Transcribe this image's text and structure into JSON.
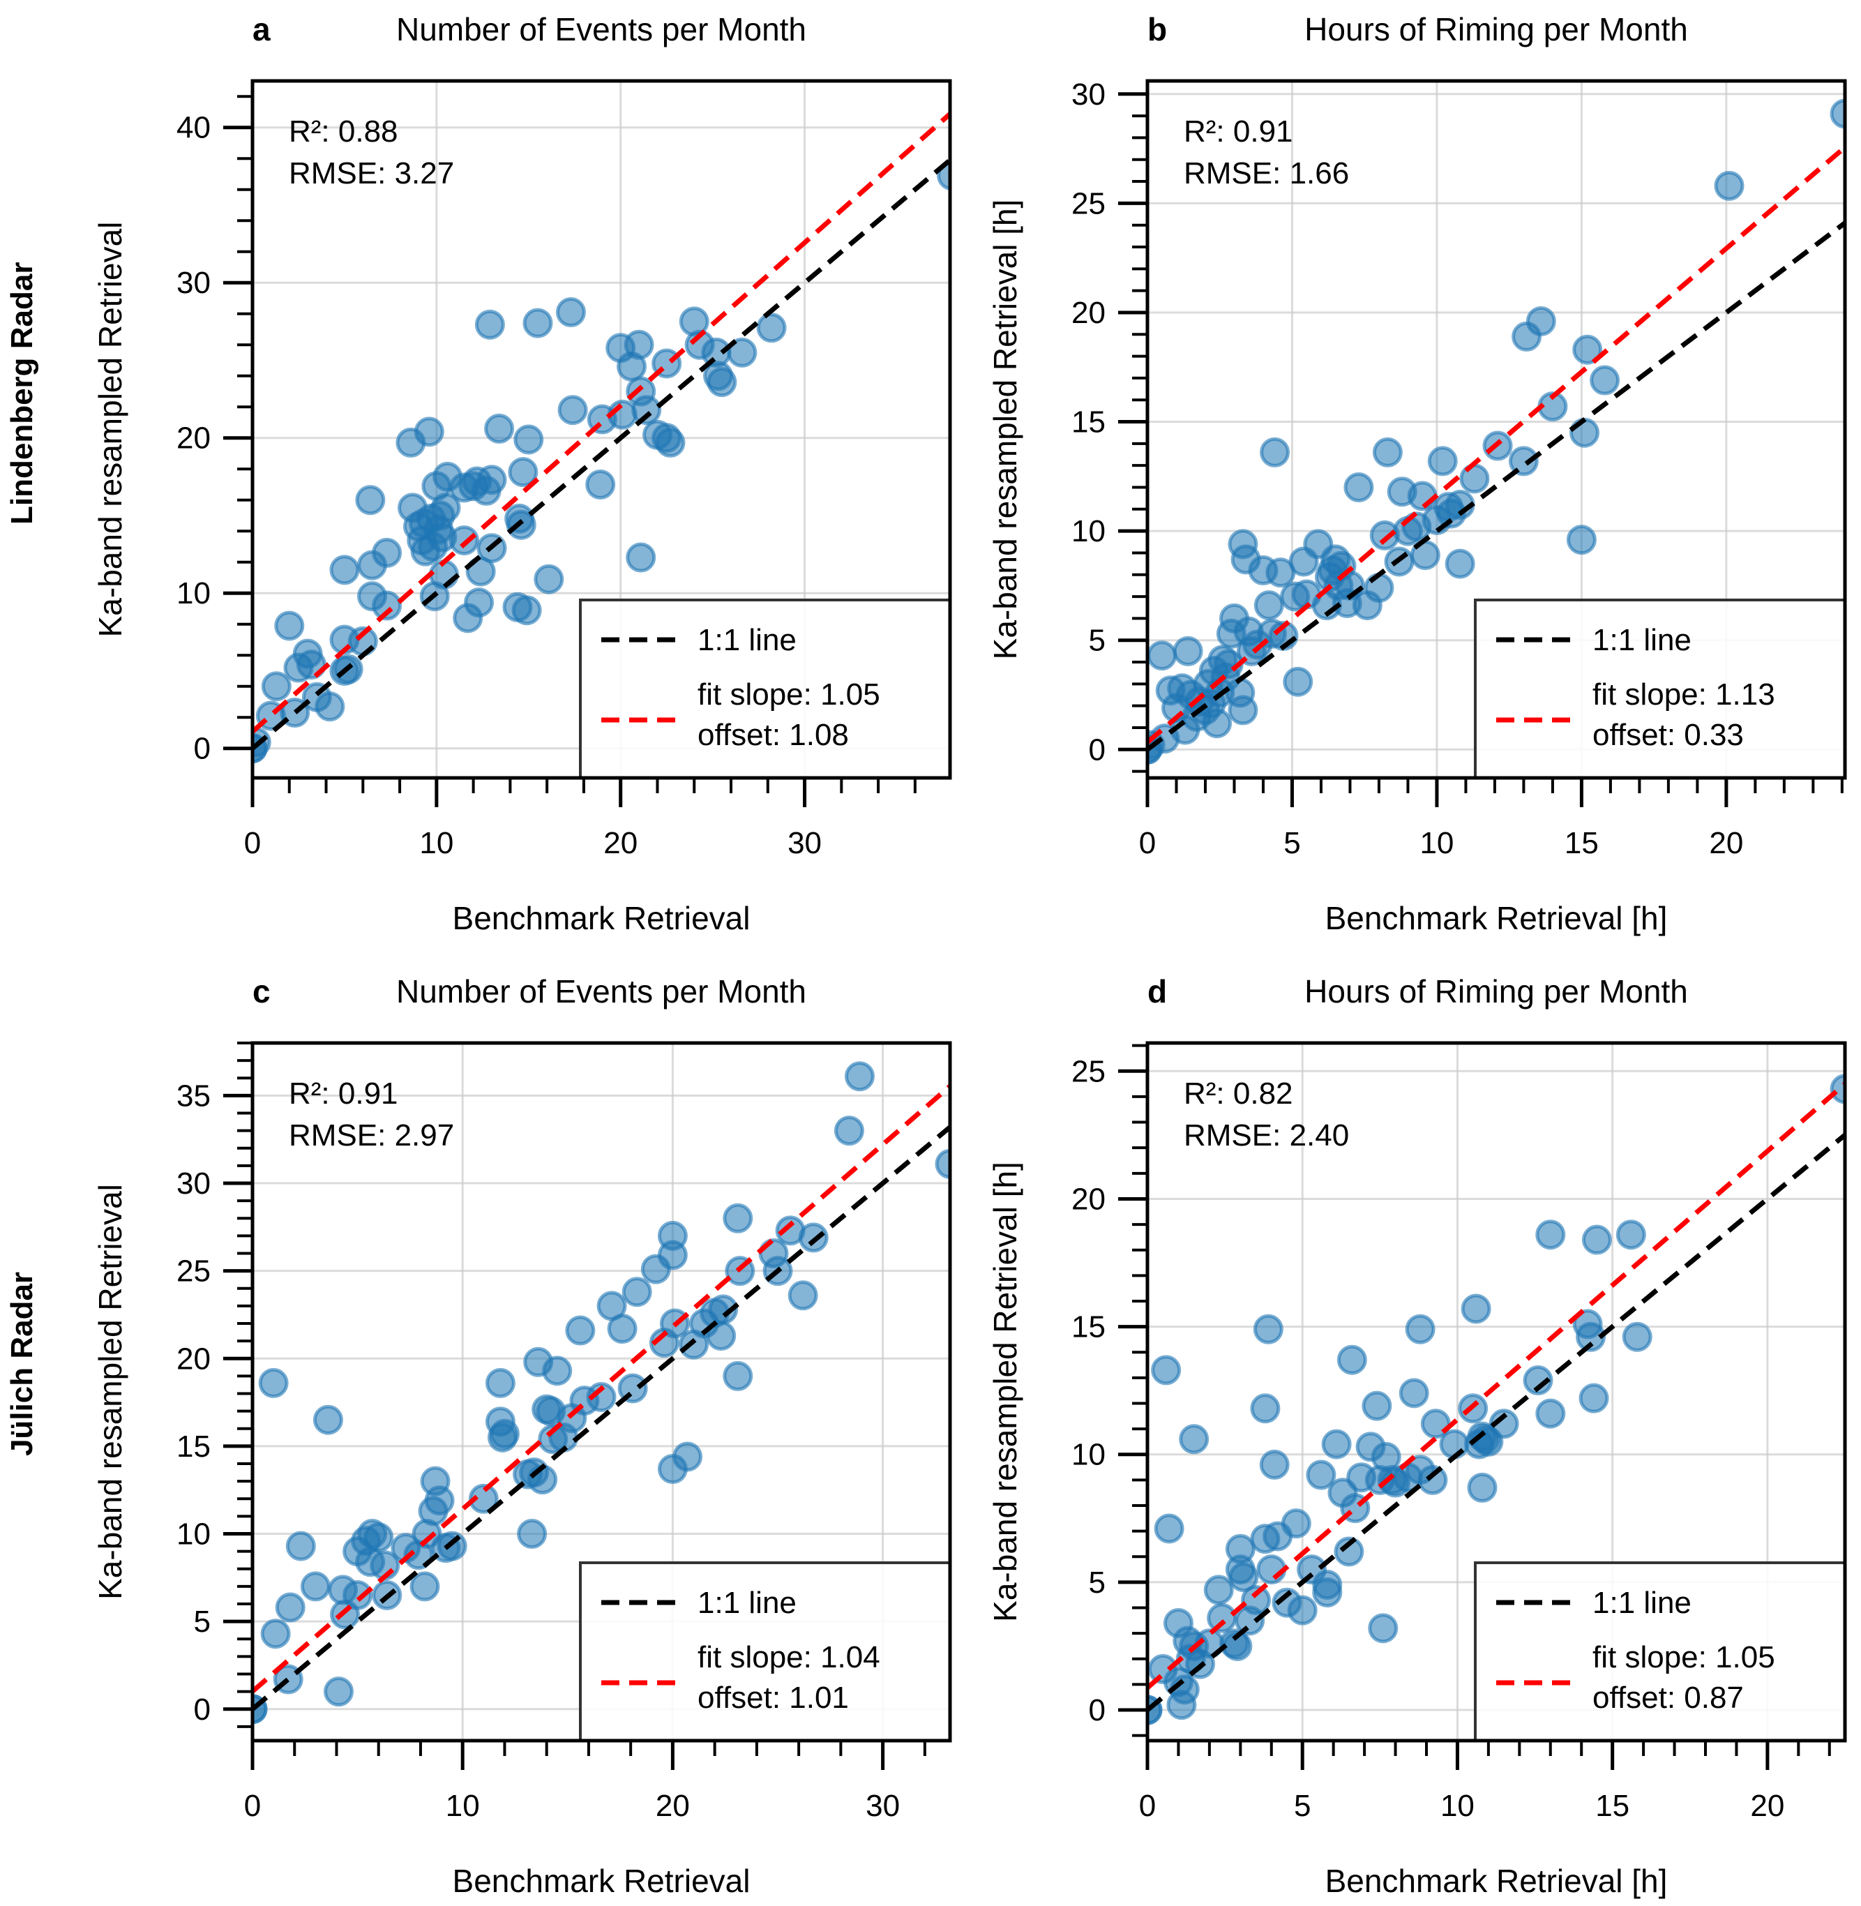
{
  "figure": {
    "row_labels": [
      "Lindenberg Radar",
      "Jülich Radar"
    ],
    "legend_labels": {
      "one_to_one": "1:1 line"
    },
    "colors": {
      "points": "#1f77b4",
      "one_to_one": "#000000",
      "fit": "#ff0000",
      "grid": "#cccccc"
    }
  },
  "chart_data": [
    {
      "panel": "a",
      "type": "scatter",
      "title": "Number of Events per Month",
      "xlabel": "Benchmark Retrieval",
      "ylabel": "Ka-band resampled Retrieval",
      "xlim": [
        0,
        37.9
      ],
      "ylim": [
        -1.9,
        43
      ],
      "xticks": [
        0,
        10,
        20,
        30
      ],
      "yticks": [
        0,
        10,
        20,
        30,
        40
      ],
      "x_minor_step": 2,
      "y_minor_step": 2,
      "grid": true,
      "stats": {
        "r2_label": "R²: 0.88",
        "rmse_label": "RMSE: 3.27"
      },
      "fit": {
        "slope": 1.05,
        "offset": 1.08,
        "label_line1": "fit slope: 1.05",
        "label_line2": "offset: 1.08"
      },
      "legend_position": "lower-right",
      "points": [
        [
          0,
          0
        ],
        [
          0,
          0
        ],
        [
          0.2,
          0.4
        ],
        [
          1.0,
          2.1
        ],
        [
          1.3,
          4.0
        ],
        [
          2.0,
          7.9
        ],
        [
          2.3,
          2.3
        ],
        [
          2.5,
          5.2
        ],
        [
          3.0,
          6.1
        ],
        [
          3.2,
          5.4
        ],
        [
          3.5,
          3.3
        ],
        [
          4.2,
          2.7
        ],
        [
          5.0,
          11.5
        ],
        [
          5.0,
          7.0
        ],
        [
          5.0,
          5.0
        ],
        [
          5.2,
          5.1
        ],
        [
          6.0,
          6.9
        ],
        [
          6.4,
          16.0
        ],
        [
          6.5,
          11.8
        ],
        [
          6.5,
          9.8
        ],
        [
          7.3,
          12.6
        ],
        [
          7.3,
          9.2
        ],
        [
          8.7,
          15.5
        ],
        [
          8.6,
          19.7
        ],
        [
          9.0,
          14.3
        ],
        [
          9.2,
          13.4
        ],
        [
          9.3,
          14.5
        ],
        [
          9.4,
          12.7
        ],
        [
          9.6,
          20.4
        ],
        [
          9.7,
          14.8
        ],
        [
          9.8,
          13.0
        ],
        [
          9.9,
          9.8
        ],
        [
          10.0,
          16.9
        ],
        [
          10.1,
          14.1
        ],
        [
          10.2,
          15.0
        ],
        [
          10.3,
          13.6
        ],
        [
          10.5,
          15.5
        ],
        [
          10.6,
          17.5
        ],
        [
          10.4,
          11.2
        ],
        [
          11.5,
          16.8
        ],
        [
          11.5,
          13.4
        ],
        [
          11.7,
          8.4
        ],
        [
          12.0,
          16.9
        ],
        [
          12.2,
          17.2
        ],
        [
          12.3,
          9.4
        ],
        [
          12.4,
          11.4
        ],
        [
          12.7,
          16.6
        ],
        [
          13.0,
          17.3
        ],
        [
          13.0,
          12.9
        ],
        [
          12.9,
          27.3
        ],
        [
          13.4,
          20.6
        ],
        [
          14.4,
          9.1
        ],
        [
          14.5,
          14.8
        ],
        [
          14.6,
          14.4
        ],
        [
          14.7,
          17.8
        ],
        [
          14.9,
          8.9
        ],
        [
          15.0,
          19.9
        ],
        [
          15.5,
          27.4
        ],
        [
          16.1,
          10.9
        ],
        [
          17.3,
          28.1
        ],
        [
          17.4,
          21.8
        ],
        [
          18.9,
          17.0
        ],
        [
          19.0,
          21.2
        ],
        [
          20.0,
          25.8
        ],
        [
          20.1,
          21.5
        ],
        [
          20.6,
          24.6
        ],
        [
          21.0,
          26.0
        ],
        [
          21.1,
          12.3
        ],
        [
          21.1,
          23.0
        ],
        [
          21.4,
          21.8
        ],
        [
          22.0,
          20.2
        ],
        [
          22.5,
          24.8
        ],
        [
          22.7,
          19.7
        ],
        [
          22.5,
          20.0
        ],
        [
          24.0,
          27.5
        ],
        [
          24.3,
          26.0
        ],
        [
          25.2,
          25.5
        ],
        [
          25.3,
          24.0
        ],
        [
          25.5,
          23.6
        ],
        [
          26.6,
          25.5
        ],
        [
          28.2,
          27.1
        ],
        [
          38.0,
          36.9
        ]
      ]
    },
    {
      "panel": "b",
      "type": "scatter",
      "title": "Hours of Riming per Month",
      "xlabel": "Benchmark Retrieval [h]",
      "ylabel": "Ka-band resampled Retrieval [h]",
      "xlim": [
        0,
        24.1
      ],
      "ylim": [
        -1.3,
        30.6
      ],
      "xticks": [
        0,
        5,
        10,
        15,
        20
      ],
      "yticks": [
        0,
        5,
        10,
        15,
        20,
        25,
        30
      ],
      "x_minor_step": 1,
      "y_minor_step": 1,
      "grid": true,
      "stats": {
        "r2_label": "R²: 0.91",
        "rmse_label": "RMSE: 1.66"
      },
      "fit": {
        "slope": 1.13,
        "offset": 0.33,
        "label_line1": "fit slope: 1.13",
        "label_line2": "offset: 0.33"
      },
      "legend_position": "lower-right",
      "points": [
        [
          0,
          0
        ],
        [
          0,
          0
        ],
        [
          0.1,
          0.2
        ],
        [
          0.5,
          4.3
        ],
        [
          0.6,
          0.5
        ],
        [
          0.8,
          2.7
        ],
        [
          1.0,
          1.9
        ],
        [
          1.2,
          2.8
        ],
        [
          1.3,
          0.9
        ],
        [
          1.4,
          4.5
        ],
        [
          1.5,
          2.5
        ],
        [
          1.7,
          1.5
        ],
        [
          1.8,
          2.2
        ],
        [
          2.0,
          1.8
        ],
        [
          2.1,
          3.0
        ],
        [
          2.2,
          2.1
        ],
        [
          2.3,
          3.6
        ],
        [
          2.4,
          1.2
        ],
        [
          2.5,
          2.6
        ],
        [
          2.6,
          4.1
        ],
        [
          2.7,
          3.3
        ],
        [
          2.8,
          3.9
        ],
        [
          2.9,
          5.3
        ],
        [
          3.0,
          6.0
        ],
        [
          3.2,
          2.6
        ],
        [
          3.3,
          1.8
        ],
        [
          3.3,
          9.4
        ],
        [
          3.4,
          8.7
        ],
        [
          3.5,
          5.4
        ],
        [
          3.6,
          4.5
        ],
        [
          3.8,
          4.8
        ],
        [
          4.0,
          8.2
        ],
        [
          4.2,
          6.6
        ],
        [
          4.3,
          5.3
        ],
        [
          4.4,
          13.6
        ],
        [
          4.6,
          8.1
        ],
        [
          4.7,
          5.2
        ],
        [
          5.1,
          7.0
        ],
        [
          5.2,
          3.1
        ],
        [
          5.4,
          8.6
        ],
        [
          5.5,
          7.1
        ],
        [
          5.9,
          9.4
        ],
        [
          6.2,
          6.6
        ],
        [
          6.3,
          7.9
        ],
        [
          6.4,
          8.2
        ],
        [
          6.5,
          8.7
        ],
        [
          6.6,
          7.5
        ],
        [
          6.7,
          8.4
        ],
        [
          6.9,
          6.7
        ],
        [
          7.0,
          7.5
        ],
        [
          7.3,
          12.0
        ],
        [
          7.6,
          6.6
        ],
        [
          8.0,
          7.4
        ],
        [
          8.2,
          9.8
        ],
        [
          8.3,
          13.6
        ],
        [
          8.7,
          8.6
        ],
        [
          8.8,
          11.8
        ],
        [
          9.0,
          10.0
        ],
        [
          9.3,
          10.2
        ],
        [
          9.5,
          11.6
        ],
        [
          9.6,
          8.9
        ],
        [
          10.0,
          10.5
        ],
        [
          10.2,
          13.2
        ],
        [
          10.4,
          11.1
        ],
        [
          10.5,
          10.8
        ],
        [
          10.8,
          8.5
        ],
        [
          10.8,
          11.2
        ],
        [
          11.3,
          12.4
        ],
        [
          12.1,
          13.9
        ],
        [
          13.0,
          13.2
        ],
        [
          13.1,
          18.9
        ],
        [
          13.6,
          19.6
        ],
        [
          14.0,
          15.7
        ],
        [
          15.0,
          9.6
        ],
        [
          15.1,
          14.5
        ],
        [
          15.2,
          18.3
        ],
        [
          15.8,
          16.9
        ],
        [
          20.1,
          25.8
        ],
        [
          24.1,
          29.1
        ]
      ]
    },
    {
      "panel": "c",
      "type": "scatter",
      "title": "Number of Events per Month",
      "xlabel": "Benchmark Retrieval",
      "ylabel": "Ka-band resampled Retrieval",
      "xlim": [
        0,
        33.2
      ],
      "ylim": [
        -1.8,
        38
      ],
      "xticks": [
        0,
        10,
        20,
        30
      ],
      "yticks": [
        0,
        5,
        10,
        15,
        20,
        25,
        30,
        35
      ],
      "x_minor_step": 2,
      "y_minor_step": 1,
      "grid": true,
      "stats": {
        "r2_label": "R²: 0.91",
        "rmse_label": "RMSE: 2.97"
      },
      "fit": {
        "slope": 1.04,
        "offset": 1.01,
        "label_line1": "fit slope: 1.04",
        "label_line2": "offset: 1.01"
      },
      "legend_position": "lower-right",
      "points": [
        [
          0,
          0
        ],
        [
          0,
          0
        ],
        [
          1.0,
          18.6
        ],
        [
          1.1,
          4.3
        ],
        [
          1.7,
          1.7
        ],
        [
          1.8,
          5.8
        ],
        [
          2.3,
          9.3
        ],
        [
          3.0,
          7.0
        ],
        [
          3.6,
          16.5
        ],
        [
          4.1,
          1.0
        ],
        [
          4.3,
          6.8
        ],
        [
          4.4,
          5.4
        ],
        [
          5.0,
          9.0
        ],
        [
          5.0,
          6.5
        ],
        [
          5.4,
          9.6
        ],
        [
          5.6,
          8.4
        ],
        [
          5.7,
          10.0
        ],
        [
          6.0,
          9.8
        ],
        [
          6.3,
          8.2
        ],
        [
          6.4,
          6.5
        ],
        [
          7.3,
          9.2
        ],
        [
          7.9,
          8.8
        ],
        [
          8.2,
          7.0
        ],
        [
          8.3,
          10.0
        ],
        [
          8.6,
          11.3
        ],
        [
          8.7,
          13.0
        ],
        [
          8.9,
          11.9
        ],
        [
          9.2,
          9.2
        ],
        [
          9.5,
          9.3
        ],
        [
          11.0,
          12.0
        ],
        [
          11.8,
          18.6
        ],
        [
          11.8,
          16.4
        ],
        [
          11.9,
          15.5
        ],
        [
          12.0,
          15.7
        ],
        [
          13.1,
          13.4
        ],
        [
          13.3,
          10.0
        ],
        [
          13.4,
          13.5
        ],
        [
          13.6,
          19.8
        ],
        [
          13.8,
          13.1
        ],
        [
          14.0,
          17.1
        ],
        [
          14.2,
          17.0
        ],
        [
          14.3,
          15.4
        ],
        [
          14.5,
          19.3
        ],
        [
          14.8,
          15.5
        ],
        [
          15.2,
          16.6
        ],
        [
          15.6,
          21.6
        ],
        [
          15.8,
          17.6
        ],
        [
          16.6,
          17.8
        ],
        [
          17.1,
          23.0
        ],
        [
          17.6,
          21.7
        ],
        [
          18.1,
          18.3
        ],
        [
          18.3,
          23.8
        ],
        [
          19.2,
          25.1
        ],
        [
          19.6,
          20.9
        ],
        [
          20.0,
          27.0
        ],
        [
          20.0,
          25.9
        ],
        [
          20.1,
          22.0
        ],
        [
          20.0,
          13.7
        ],
        [
          20.7,
          14.4
        ],
        [
          21.0,
          20.8
        ],
        [
          21.5,
          22.0
        ],
        [
          22.0,
          22.6
        ],
        [
          22.3,
          21.3
        ],
        [
          22.4,
          22.8
        ],
        [
          23.1,
          19.0
        ],
        [
          23.1,
          28.0
        ],
        [
          23.2,
          25.0
        ],
        [
          24.8,
          26.0
        ],
        [
          25.0,
          25.0
        ],
        [
          25.6,
          27.3
        ],
        [
          26.2,
          23.6
        ],
        [
          26.7,
          26.9
        ],
        [
          28.4,
          33.0
        ],
        [
          28.9,
          36.1
        ],
        [
          33.2,
          31.1
        ]
      ]
    },
    {
      "panel": "d",
      "type": "scatter",
      "title": "Hours of Riming per Month",
      "xlabel": "Benchmark Retrieval [h]",
      "ylabel": "Ka-band resampled Retrieval [h]",
      "xlim": [
        0,
        22.5
      ],
      "ylim": [
        -1.2,
        26.1
      ],
      "xticks": [
        0,
        5,
        10,
        15,
        20
      ],
      "yticks": [
        0,
        5,
        10,
        15,
        20,
        25
      ],
      "x_minor_step": 1,
      "y_minor_step": 1,
      "grid": true,
      "stats": {
        "r2_label": "R²: 0.82",
        "rmse_label": "RMSE: 2.40"
      },
      "fit": {
        "slope": 1.05,
        "offset": 0.87,
        "label_line1": "fit slope: 1.05",
        "label_line2": "offset: 0.87"
      },
      "legend_position": "lower-right",
      "points": [
        [
          0,
          0
        ],
        [
          0,
          0
        ],
        [
          0.5,
          1.6
        ],
        [
          0.6,
          13.3
        ],
        [
          0.7,
          7.1
        ],
        [
          1.0,
          3.4
        ],
        [
          1.0,
          1.1
        ],
        [
          1.1,
          0.2
        ],
        [
          1.2,
          0.8
        ],
        [
          1.3,
          2.7
        ],
        [
          1.4,
          2.0
        ],
        [
          1.5,
          10.6
        ],
        [
          1.5,
          2.5
        ],
        [
          1.7,
          1.8
        ],
        [
          2.0,
          2.6
        ],
        [
          2.3,
          4.7
        ],
        [
          2.4,
          3.6
        ],
        [
          2.8,
          2.6
        ],
        [
          2.9,
          2.5
        ],
        [
          3.0,
          6.3
        ],
        [
          3.0,
          5.5
        ],
        [
          3.1,
          5.2
        ],
        [
          3.3,
          3.5
        ],
        [
          3.5,
          4.3
        ],
        [
          3.8,
          11.8
        ],
        [
          3.8,
          6.7
        ],
        [
          3.9,
          14.9
        ],
        [
          4.0,
          5.5
        ],
        [
          4.1,
          9.6
        ],
        [
          4.2,
          6.8
        ],
        [
          4.5,
          4.2
        ],
        [
          4.8,
          7.3
        ],
        [
          5.0,
          3.9
        ],
        [
          5.3,
          5.5
        ],
        [
          5.6,
          9.2
        ],
        [
          5.8,
          4.6
        ],
        [
          5.8,
          4.9
        ],
        [
          6.1,
          10.4
        ],
        [
          6.3,
          8.5
        ],
        [
          6.5,
          6.2
        ],
        [
          6.6,
          13.7
        ],
        [
          6.7,
          7.9
        ],
        [
          6.9,
          9.1
        ],
        [
          7.2,
          10.3
        ],
        [
          7.4,
          11.9
        ],
        [
          7.5,
          9.0
        ],
        [
          7.6,
          3.2
        ],
        [
          7.7,
          9.9
        ],
        [
          7.9,
          9.0
        ],
        [
          8.0,
          8.9
        ],
        [
          8.4,
          9.1
        ],
        [
          8.6,
          12.4
        ],
        [
          8.8,
          9.4
        ],
        [
          8.8,
          14.9
        ],
        [
          9.2,
          9.0
        ],
        [
          9.3,
          11.2
        ],
        [
          9.9,
          10.4
        ],
        [
          10.5,
          11.8
        ],
        [
          10.6,
          15.7
        ],
        [
          10.7,
          10.4
        ],
        [
          10.8,
          10.7
        ],
        [
          10.9,
          10.6
        ],
        [
          10.8,
          8.7
        ],
        [
          11.0,
          10.5
        ],
        [
          11.5,
          11.2
        ],
        [
          12.6,
          12.9
        ],
        [
          13.0,
          11.6
        ],
        [
          13.0,
          18.6
        ],
        [
          14.2,
          15.1
        ],
        [
          14.3,
          14.6
        ],
        [
          14.4,
          12.2
        ],
        [
          14.5,
          18.4
        ],
        [
          15.6,
          18.6
        ],
        [
          15.8,
          14.6
        ],
        [
          22.5,
          24.3
        ]
      ]
    }
  ]
}
